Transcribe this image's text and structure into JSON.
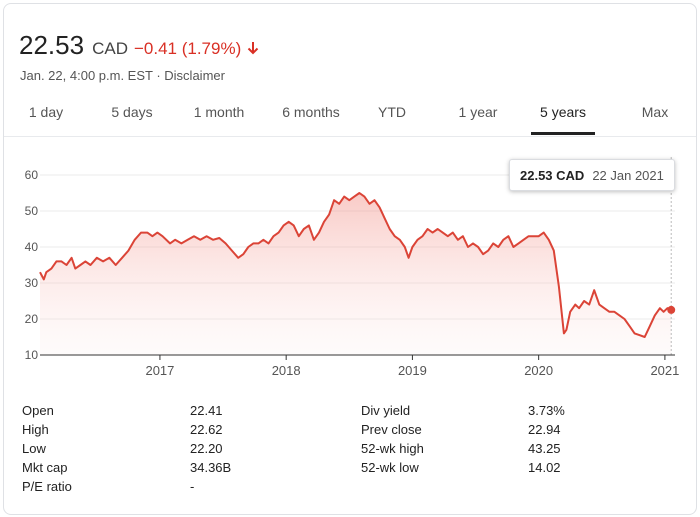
{
  "quote": {
    "price": "22.53",
    "currency": "CAD",
    "change": "−0.41 (1.79%)",
    "timestamp": "Jan. 22, 4:00 p.m. EST · ",
    "disclaimer": "Disclaimer"
  },
  "tabs": [
    "1 day",
    "5 days",
    "1 month",
    "6 months",
    "YTD",
    "1 year",
    "5 years",
    "Max"
  ],
  "active_tab": "5 years",
  "colors": {
    "line": "#db4437",
    "negative": "#d93025",
    "fill": "#f6c7c2"
  },
  "tooltip": {
    "price": "22.53 CAD",
    "date": "22 Jan 2021"
  },
  "chart_data": {
    "type": "area",
    "x_ticks": [
      "2017",
      "2018",
      "2019",
      "2020",
      "2021"
    ],
    "y_ticks": [
      "60",
      "50",
      "40",
      "30",
      "20",
      "10"
    ],
    "ylim": [
      10,
      60
    ],
    "xlim": [
      2016.05,
      2021.08
    ],
    "series": [
      {
        "points": [
          [
            2016.05,
            33
          ],
          [
            2016.08,
            31
          ],
          [
            2016.1,
            33
          ],
          [
            2016.14,
            34
          ],
          [
            2016.18,
            36
          ],
          [
            2016.22,
            36
          ],
          [
            2016.26,
            35
          ],
          [
            2016.3,
            37
          ],
          [
            2016.33,
            34
          ],
          [
            2016.37,
            35
          ],
          [
            2016.41,
            36
          ],
          [
            2016.45,
            35
          ],
          [
            2016.5,
            37
          ],
          [
            2016.55,
            36
          ],
          [
            2016.6,
            37
          ],
          [
            2016.65,
            35
          ],
          [
            2016.7,
            37
          ],
          [
            2016.75,
            39
          ],
          [
            2016.8,
            42
          ],
          [
            2016.85,
            44
          ],
          [
            2016.9,
            44
          ],
          [
            2016.94,
            43
          ],
          [
            2016.98,
            44
          ],
          [
            2017.02,
            43
          ],
          [
            2017.08,
            41
          ],
          [
            2017.12,
            42
          ],
          [
            2017.17,
            41
          ],
          [
            2017.22,
            42
          ],
          [
            2017.27,
            43
          ],
          [
            2017.32,
            42
          ],
          [
            2017.37,
            43
          ],
          [
            2017.42,
            42
          ],
          [
            2017.47,
            42.5
          ],
          [
            2017.52,
            41
          ],
          [
            2017.57,
            39
          ],
          [
            2017.62,
            37
          ],
          [
            2017.66,
            38
          ],
          [
            2017.7,
            40
          ],
          [
            2017.74,
            41
          ],
          [
            2017.78,
            41
          ],
          [
            2017.82,
            42
          ],
          [
            2017.86,
            41
          ],
          [
            2017.9,
            43
          ],
          [
            2017.94,
            44
          ],
          [
            2017.98,
            46
          ],
          [
            2018.02,
            47
          ],
          [
            2018.06,
            46
          ],
          [
            2018.1,
            43
          ],
          [
            2018.14,
            45
          ],
          [
            2018.18,
            46
          ],
          [
            2018.22,
            42
          ],
          [
            2018.26,
            44
          ],
          [
            2018.3,
            47
          ],
          [
            2018.34,
            49
          ],
          [
            2018.38,
            53
          ],
          [
            2018.42,
            52
          ],
          [
            2018.46,
            54
          ],
          [
            2018.5,
            53
          ],
          [
            2018.54,
            54
          ],
          [
            2018.58,
            55
          ],
          [
            2018.62,
            54
          ],
          [
            2018.66,
            52
          ],
          [
            2018.7,
            53
          ],
          [
            2018.74,
            51
          ],
          [
            2018.78,
            48
          ],
          [
            2018.82,
            45
          ],
          [
            2018.86,
            43
          ],
          [
            2018.9,
            42
          ],
          [
            2018.94,
            40
          ],
          [
            2018.97,
            37
          ],
          [
            2019.0,
            40
          ],
          [
            2019.04,
            42
          ],
          [
            2019.08,
            43
          ],
          [
            2019.12,
            45
          ],
          [
            2019.16,
            44
          ],
          [
            2019.2,
            45
          ],
          [
            2019.24,
            44
          ],
          [
            2019.28,
            43
          ],
          [
            2019.32,
            44
          ],
          [
            2019.36,
            42
          ],
          [
            2019.4,
            43
          ],
          [
            2019.44,
            40
          ],
          [
            2019.48,
            41
          ],
          [
            2019.52,
            40
          ],
          [
            2019.56,
            38
          ],
          [
            2019.6,
            39
          ],
          [
            2019.64,
            41
          ],
          [
            2019.68,
            40
          ],
          [
            2019.72,
            42
          ],
          [
            2019.76,
            43
          ],
          [
            2019.8,
            40
          ],
          [
            2019.84,
            41
          ],
          [
            2019.88,
            42
          ],
          [
            2019.92,
            43
          ],
          [
            2019.96,
            43
          ],
          [
            2020.0,
            43
          ],
          [
            2020.04,
            44
          ],
          [
            2020.08,
            42
          ],
          [
            2020.12,
            39
          ],
          [
            2020.16,
            29
          ],
          [
            2020.2,
            16
          ],
          [
            2020.22,
            17
          ],
          [
            2020.25,
            22
          ],
          [
            2020.29,
            24
          ],
          [
            2020.32,
            23
          ],
          [
            2020.36,
            25
          ],
          [
            2020.4,
            24
          ],
          [
            2020.44,
            28
          ],
          [
            2020.48,
            24
          ],
          [
            2020.52,
            23
          ],
          [
            2020.56,
            22
          ],
          [
            2020.6,
            22
          ],
          [
            2020.64,
            21
          ],
          [
            2020.68,
            20
          ],
          [
            2020.72,
            18
          ],
          [
            2020.76,
            16
          ],
          [
            2020.8,
            15.5
          ],
          [
            2020.84,
            15
          ],
          [
            2020.88,
            18
          ],
          [
            2020.92,
            21
          ],
          [
            2020.96,
            23
          ],
          [
            2020.99,
            22
          ],
          [
            2021.02,
            23
          ],
          [
            2021.05,
            22.53
          ]
        ]
      }
    ]
  },
  "stats": {
    "left": [
      {
        "label": "Open",
        "value": "22.41"
      },
      {
        "label": "High",
        "value": "22.62"
      },
      {
        "label": "Low",
        "value": "22.20"
      },
      {
        "label": "Mkt cap",
        "value": "34.36B"
      },
      {
        "label": "P/E ratio",
        "value": "-"
      }
    ],
    "right": [
      {
        "label": "Div yield",
        "value": "3.73%"
      },
      {
        "label": "Prev close",
        "value": "22.94"
      },
      {
        "label": "52-wk high",
        "value": "43.25"
      },
      {
        "label": "52-wk low",
        "value": "14.02"
      }
    ]
  }
}
